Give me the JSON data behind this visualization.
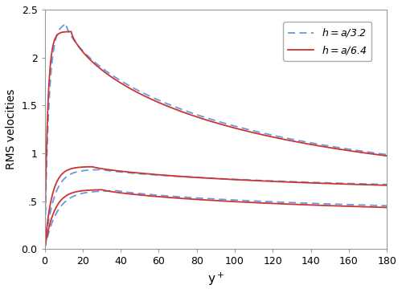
{
  "xlabel": "y+",
  "ylabel": "RMS velocities",
  "xlim": [
    0,
    180
  ],
  "ylim": [
    0.0,
    2.5
  ],
  "xticks": [
    0,
    20,
    40,
    60,
    80,
    100,
    120,
    140,
    160,
    180
  ],
  "yticks": [
    0.0,
    0.5,
    1.0,
    1.5,
    2.0,
    2.5
  ],
  "color_coarse": "#6699dd",
  "color_fine": "#cc3333",
  "line_width": 1.3
}
